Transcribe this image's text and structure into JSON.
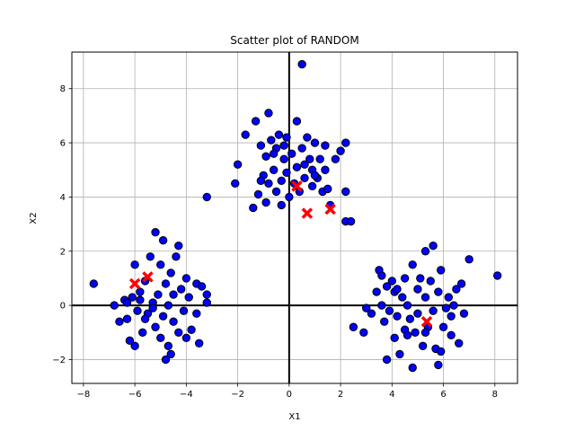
{
  "chart_data": {
    "type": "scatter",
    "title": "Scatter plot of RANDOM",
    "xlabel": "X1",
    "ylabel": "X2",
    "xlim": [
      -8.45,
      8.88
    ],
    "ylim": [
      -2.88,
      9.35
    ],
    "xticks": [
      -8,
      -6,
      -4,
      -2,
      0,
      2,
      4,
      6,
      8
    ],
    "yticks": [
      -2,
      0,
      2,
      4,
      6,
      8
    ],
    "grid": true,
    "zero_lines": true,
    "colors": {
      "points": "#0000ff",
      "points_edge": "#000000",
      "centroids": "#ff0000",
      "axes_lines": "#000000",
      "grid": "#b0b0b0"
    },
    "series": [
      {
        "marker": "circle",
        "points": [
          [
            -7.6,
            0.8
          ],
          [
            -6.8,
            0.0
          ],
          [
            -6.6,
            -0.6
          ],
          [
            -6.4,
            0.2
          ],
          [
            -6.3,
            -0.5
          ],
          [
            -6.2,
            -1.3
          ],
          [
            -6.1,
            0.3
          ],
          [
            -6.0,
            1.5
          ],
          [
            -6.0,
            -1.5
          ],
          [
            -5.9,
            -0.2
          ],
          [
            -5.8,
            0.5
          ],
          [
            -5.7,
            -1.0
          ],
          [
            -5.6,
            0.9
          ],
          [
            -5.5,
            -0.3
          ],
          [
            -5.4,
            1.8
          ],
          [
            -5.3,
            0.1
          ],
          [
            -5.2,
            -0.8
          ],
          [
            -5.2,
            2.7
          ],
          [
            -5.1,
            0.4
          ],
          [
            -5.0,
            -1.2
          ],
          [
            -5.0,
            1.5
          ],
          [
            -4.9,
            -0.4
          ],
          [
            -4.9,
            2.4
          ],
          [
            -4.8,
            0.8
          ],
          [
            -4.8,
            -2.0
          ],
          [
            -4.7,
            0.0
          ],
          [
            -4.7,
            -1.5
          ],
          [
            -4.6,
            1.2
          ],
          [
            -4.5,
            -0.6
          ],
          [
            -4.5,
            0.4
          ],
          [
            -4.4,
            1.8
          ],
          [
            -4.3,
            -1.0
          ],
          [
            -4.3,
            2.2
          ],
          [
            -4.2,
            0.6
          ],
          [
            -4.1,
            -0.2
          ],
          [
            -4.0,
            -1.2
          ],
          [
            -4.0,
            1.0
          ],
          [
            -3.9,
            0.3
          ],
          [
            -3.8,
            -0.9
          ],
          [
            -3.6,
            0.8
          ],
          [
            -3.6,
            -0.3
          ],
          [
            -3.5,
            -1.4
          ],
          [
            -3.4,
            0.7
          ],
          [
            -3.2,
            0.4
          ],
          [
            -3.2,
            0.1
          ],
          [
            -5.6,
            -0.5
          ],
          [
            -5.3,
            -0.1
          ],
          [
            -4.6,
            -1.8
          ],
          [
            -5.8,
            0.2
          ],
          [
            -6.3,
            0.1
          ],
          [
            -2.1,
            4.5
          ],
          [
            -2.0,
            5.2
          ],
          [
            -1.7,
            6.3
          ],
          [
            -1.4,
            3.6
          ],
          [
            -1.3,
            6.8
          ],
          [
            -1.2,
            4.1
          ],
          [
            -1.1,
            5.9
          ],
          [
            -1.0,
            4.8
          ],
          [
            -0.9,
            3.8
          ],
          [
            -0.9,
            5.5
          ],
          [
            -0.8,
            7.1
          ],
          [
            -0.8,
            4.5
          ],
          [
            -0.7,
            6.1
          ],
          [
            -0.6,
            5.0
          ],
          [
            -0.5,
            4.2
          ],
          [
            -0.5,
            5.8
          ],
          [
            -0.4,
            6.3
          ],
          [
            -0.3,
            4.6
          ],
          [
            -0.3,
            3.7
          ],
          [
            -0.2,
            5.4
          ],
          [
            -0.1,
            6.2
          ],
          [
            -0.1,
            4.9
          ],
          [
            0.0,
            4.0
          ],
          [
            0.1,
            5.6
          ],
          [
            0.2,
            4.5
          ],
          [
            0.3,
            6.8
          ],
          [
            0.3,
            5.1
          ],
          [
            0.4,
            4.2
          ],
          [
            0.5,
            5.8
          ],
          [
            0.5,
            8.9
          ],
          [
            0.6,
            4.7
          ],
          [
            0.7,
            6.2
          ],
          [
            0.8,
            5.4
          ],
          [
            0.9,
            4.4
          ],
          [
            0.9,
            5.0
          ],
          [
            1.0,
            6.0
          ],
          [
            1.1,
            4.7
          ],
          [
            1.2,
            5.4
          ],
          [
            1.3,
            4.2
          ],
          [
            1.4,
            5.0
          ],
          [
            1.4,
            5.9
          ],
          [
            1.5,
            4.3
          ],
          [
            1.6,
            3.7
          ],
          [
            1.8,
            5.4
          ],
          [
            2.0,
            5.7
          ],
          [
            2.2,
            4.2
          ],
          [
            2.2,
            6.0
          ],
          [
            2.2,
            3.1
          ],
          [
            2.4,
            3.1
          ],
          [
            -3.2,
            4.0
          ],
          [
            -0.2,
            5.9
          ],
          [
            0.6,
            5.2
          ],
          [
            -1.1,
            4.6
          ],
          [
            1.0,
            4.8
          ],
          [
            -0.6,
            5.6
          ],
          [
            2.5,
            -0.8
          ],
          [
            2.9,
            -1.0
          ],
          [
            3.0,
            -0.1
          ],
          [
            3.2,
            -0.3
          ],
          [
            3.4,
            0.5
          ],
          [
            3.5,
            1.3
          ],
          [
            3.6,
            0.0
          ],
          [
            3.7,
            -0.6
          ],
          [
            3.8,
            0.7
          ],
          [
            3.8,
            -2.0
          ],
          [
            3.9,
            -0.2
          ],
          [
            4.0,
            0.9
          ],
          [
            4.1,
            -1.2
          ],
          [
            4.1,
            0.5
          ],
          [
            4.2,
            -0.4
          ],
          [
            4.3,
            -1.8
          ],
          [
            4.4,
            0.3
          ],
          [
            4.5,
            -0.9
          ],
          [
            4.5,
            1.0
          ],
          [
            4.6,
            0.0
          ],
          [
            4.7,
            -0.5
          ],
          [
            4.8,
            1.5
          ],
          [
            4.8,
            -2.3
          ],
          [
            4.9,
            -1.0
          ],
          [
            5.0,
            0.6
          ],
          [
            5.0,
            -0.3
          ],
          [
            5.1,
            1.0
          ],
          [
            5.2,
            -1.5
          ],
          [
            5.3,
            2.0
          ],
          [
            5.3,
            0.3
          ],
          [
            5.4,
            -0.8
          ],
          [
            5.5,
            0.9
          ],
          [
            5.6,
            2.2
          ],
          [
            5.6,
            -0.2
          ],
          [
            5.7,
            -1.6
          ],
          [
            5.8,
            0.5
          ],
          [
            5.8,
            -2.2
          ],
          [
            5.9,
            1.3
          ],
          [
            6.0,
            -0.8
          ],
          [
            6.1,
            -0.1
          ],
          [
            6.2,
            0.3
          ],
          [
            6.3,
            -1.1
          ],
          [
            6.4,
            0.0
          ],
          [
            6.5,
            0.6
          ],
          [
            6.6,
            -1.4
          ],
          [
            6.7,
            0.8
          ],
          [
            6.8,
            -0.3
          ],
          [
            7.0,
            1.7
          ],
          [
            8.1,
            1.1
          ],
          [
            3.6,
            1.1
          ],
          [
            4.2,
            0.6
          ],
          [
            5.9,
            -1.7
          ],
          [
            4.6,
            -1.1
          ],
          [
            5.3,
            -1.0
          ],
          [
            6.3,
            -0.4
          ]
        ]
      },
      {
        "marker": "x",
        "points": [
          [
            -6.0,
            0.8
          ],
          [
            -5.5,
            1.05
          ],
          [
            0.3,
            4.4
          ],
          [
            0.7,
            3.4
          ],
          [
            1.6,
            3.55
          ],
          [
            5.35,
            -0.6
          ]
        ]
      }
    ]
  }
}
